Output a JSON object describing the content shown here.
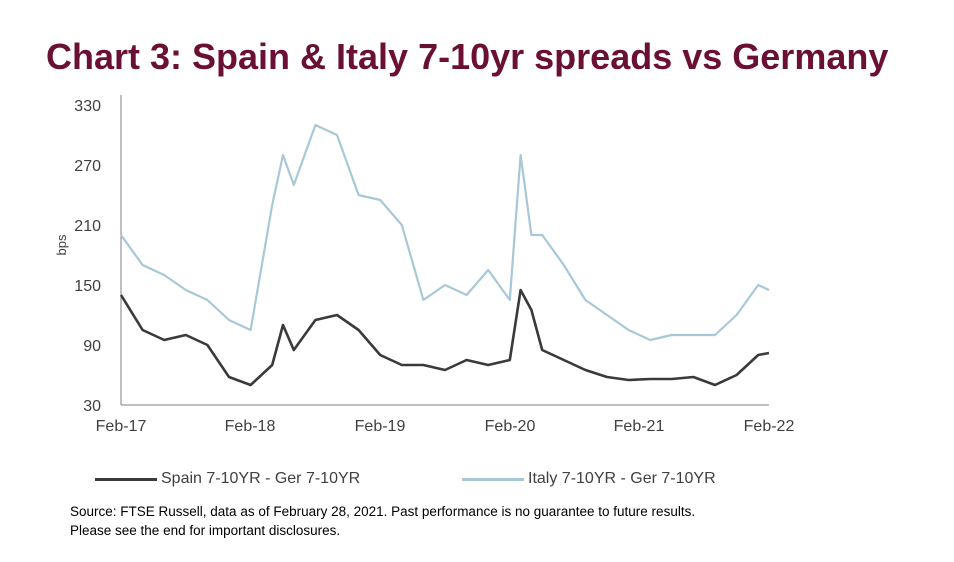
{
  "title": "Chart 3: Spain & Italy 7-10yr spreads vs Germany",
  "source_line1": "Source: FTSE Russell, data as of February 28, 2021. Past performance is no guarantee to future results.",
  "source_line2": "Please see the end for important disclosures.",
  "colors": {
    "title": "#6b1035",
    "spain": "#3a3a3a",
    "italy": "#a8c8d8",
    "axis": "#7f7f7f"
  },
  "chart_data": {
    "type": "line",
    "ylabel": "bps",
    "ylim": [
      30,
      330
    ],
    "yticks": [
      "330",
      "270",
      "210",
      "150",
      "90",
      "30"
    ],
    "xlim": [
      "2017-02",
      "2022-02"
    ],
    "xticks": [
      "Feb-17",
      "Feb-18",
      "Feb-19",
      "Feb-20",
      "Feb-21",
      "Feb-22"
    ],
    "grid": false,
    "legend_position": "bottom",
    "x": [
      "2017-02",
      "2017-04",
      "2017-06",
      "2017-08",
      "2017-10",
      "2017-12",
      "2018-02",
      "2018-04",
      "2018-05",
      "2018-06",
      "2018-08",
      "2018-10",
      "2018-12",
      "2019-02",
      "2019-04",
      "2019-06",
      "2019-08",
      "2019-10",
      "2019-12",
      "2020-02",
      "2020-03",
      "2020-04",
      "2020-05",
      "2020-07",
      "2020-09",
      "2020-11",
      "2021-01",
      "2021-03",
      "2021-05",
      "2021-07",
      "2021-09",
      "2021-11",
      "2022-01",
      "2022-02"
    ],
    "series": [
      {
        "name": "Spain 7-10YR - Ger 7-10YR",
        "values": [
          140,
          105,
          95,
          100,
          90,
          58,
          50,
          70,
          110,
          85,
          115,
          120,
          105,
          80,
          70,
          70,
          65,
          75,
          70,
          75,
          145,
          125,
          85,
          75,
          65,
          58,
          55,
          56,
          56,
          58,
          50,
          60,
          80,
          82
        ]
      },
      {
        "name": "Italy 7-10YR - Ger 7-10YR",
        "values": [
          200,
          170,
          160,
          145,
          135,
          115,
          105,
          230,
          280,
          250,
          310,
          300,
          240,
          235,
          210,
          135,
          150,
          140,
          165,
          135,
          280,
          200,
          200,
          170,
          135,
          120,
          105,
          95,
          100,
          100,
          100,
          120,
          150,
          145
        ]
      }
    ]
  }
}
